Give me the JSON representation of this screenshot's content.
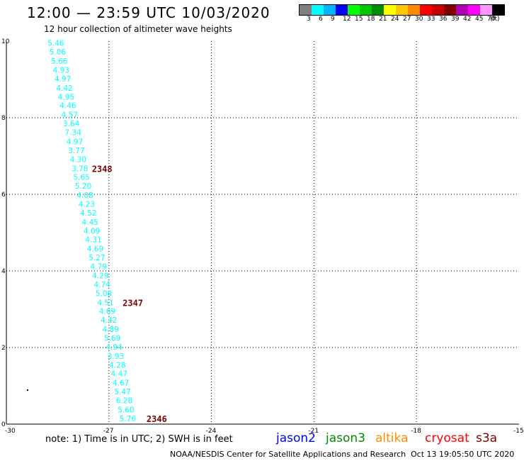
{
  "header": {
    "title": "12:00 — 23:59 UTC 10/03/2020",
    "subtitle": "12 hour collection of altimeter wave heights"
  },
  "legend": {
    "colors": [
      "#808080",
      "#00ffff",
      "#00b4ff",
      "#0000ff",
      "#00ff00",
      "#00c800",
      "#008c00",
      "#ffff00",
      "#ffc800",
      "#ff8c00",
      "#ff0000",
      "#c80000",
      "#800000",
      "#b400b4",
      "#ff00ff",
      "#ff96ff",
      "#000000"
    ],
    "labels": [
      "3",
      "6",
      "9",
      "12",
      "15",
      "18",
      "21",
      "24",
      "27",
      "30",
      "33",
      "36",
      "39",
      "42",
      "45",
      "70",
      "(ft)"
    ]
  },
  "chart_data": {
    "type": "scatter",
    "xlim": [
      -30,
      -15
    ],
    "ylim": [
      0,
      10
    ],
    "x_ticks": [
      "-30",
      "-27",
      "-24",
      "-21",
      "-18",
      "-15"
    ],
    "y_ticks": [
      "0",
      "2",
      "4",
      "6",
      "8",
      "10"
    ],
    "grid": true,
    "series": [
      {
        "color": "#00ffff",
        "points": [
          {
            "x": -28.55,
            "y": 9.95,
            "label": "5.46"
          },
          {
            "x": -28.5,
            "y": 9.72,
            "label": "5.06"
          },
          {
            "x": -28.45,
            "y": 9.48,
            "label": "5.66"
          },
          {
            "x": -28.4,
            "y": 9.25,
            "label": "4.93"
          },
          {
            "x": -28.35,
            "y": 9.02,
            "label": "4.97"
          },
          {
            "x": -28.3,
            "y": 8.78,
            "label": "4.42"
          },
          {
            "x": -28.25,
            "y": 8.55,
            "label": "4.95"
          },
          {
            "x": -28.2,
            "y": 8.32,
            "label": "4.46"
          },
          {
            "x": -28.15,
            "y": 8.08,
            "label": "4.57"
          },
          {
            "x": -28.1,
            "y": 7.85,
            "label": "3.64"
          },
          {
            "x": -28.05,
            "y": 7.62,
            "label": "7.34"
          },
          {
            "x": -28.0,
            "y": 7.38,
            "label": "4.97"
          },
          {
            "x": -27.95,
            "y": 7.15,
            "label": "3.77"
          },
          {
            "x": -27.9,
            "y": 6.92,
            "label": "4.30"
          },
          {
            "x": -27.85,
            "y": 6.68,
            "label": "3.78"
          },
          {
            "x": -27.8,
            "y": 6.45,
            "label": "5.65"
          },
          {
            "x": -27.75,
            "y": 6.22,
            "label": "5.20"
          },
          {
            "x": -27.7,
            "y": 5.98,
            "label": "4.08"
          },
          {
            "x": -27.65,
            "y": 5.75,
            "label": "4.23"
          },
          {
            "x": -27.6,
            "y": 5.52,
            "label": "4.52"
          },
          {
            "x": -27.55,
            "y": 5.28,
            "label": "4.45"
          },
          {
            "x": -27.5,
            "y": 5.05,
            "label": "4.09"
          },
          {
            "x": -27.45,
            "y": 4.82,
            "label": "4.31"
          },
          {
            "x": -27.4,
            "y": 4.58,
            "label": "4.69"
          },
          {
            "x": -27.35,
            "y": 4.35,
            "label": "5.27"
          },
          {
            "x": -27.3,
            "y": 4.12,
            "label": "4.79"
          },
          {
            "x": -27.25,
            "y": 3.88,
            "label": "4.29"
          },
          {
            "x": -27.2,
            "y": 3.65,
            "label": "4.74"
          },
          {
            "x": -27.15,
            "y": 3.42,
            "label": "5.08"
          },
          {
            "x": -27.1,
            "y": 3.18,
            "label": "4.51"
          },
          {
            "x": -27.05,
            "y": 2.95,
            "label": "4.69"
          },
          {
            "x": -27.0,
            "y": 2.72,
            "label": "4.42"
          },
          {
            "x": -26.95,
            "y": 2.48,
            "label": "4.89"
          },
          {
            "x": -26.9,
            "y": 2.25,
            "label": "5.69"
          },
          {
            "x": -26.85,
            "y": 2.02,
            "label": "4.94"
          },
          {
            "x": -26.8,
            "y": 1.78,
            "label": "3.93"
          },
          {
            "x": -26.75,
            "y": 1.55,
            "label": "4.28"
          },
          {
            "x": -26.7,
            "y": 1.32,
            "label": "4.47"
          },
          {
            "x": -26.65,
            "y": 1.08,
            "label": "4.67"
          },
          {
            "x": -26.6,
            "y": 0.85,
            "label": "5.47"
          },
          {
            "x": -26.55,
            "y": 0.62,
            "label": "6.28"
          },
          {
            "x": -26.5,
            "y": 0.38,
            "label": "5.60"
          },
          {
            "x": -26.45,
            "y": 0.15,
            "label": "5.76"
          }
        ]
      }
    ],
    "time_marks": [
      {
        "x": -27.2,
        "y": 6.68,
        "label": "2348",
        "color": "#800000"
      },
      {
        "x": -26.3,
        "y": 3.18,
        "label": "2347",
        "color": "#800000"
      },
      {
        "x": -25.6,
        "y": 0.15,
        "label": "2346",
        "color": "#800000"
      }
    ]
  },
  "note": "note:  1) Time is in UTC;  2) SWH is in feet",
  "satellites": [
    {
      "name": "jason2",
      "color": "#0000ff"
    },
    {
      "name": "jason3",
      "color": "#008c00"
    },
    {
      "name": "altika",
      "color": "#ff8c00"
    },
    {
      "name": "cryosat",
      "color": "#ff0000"
    },
    {
      "name": "s3a",
      "color": "#800000"
    }
  ],
  "footer": {
    "center": "NOAA/NESDIS Center for Satellite Applications and Research",
    "date": "Oct 13 19:05:50 UTC 2020"
  }
}
